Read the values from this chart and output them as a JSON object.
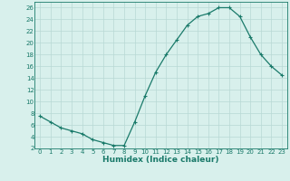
{
  "x": [
    0,
    1,
    2,
    3,
    4,
    5,
    6,
    7,
    8,
    9,
    10,
    11,
    12,
    13,
    14,
    15,
    16,
    17,
    18,
    19,
    20,
    21,
    22,
    23
  ],
  "y": [
    7.5,
    6.5,
    5.5,
    5.0,
    4.5,
    3.5,
    3.0,
    2.5,
    2.5,
    6.5,
    11.0,
    15.0,
    18.0,
    20.5,
    23.0,
    24.5,
    25.0,
    26.0,
    26.0,
    24.5,
    21.0,
    18.0,
    16.0,
    14.5
  ],
  "line_color": "#1a7a6a",
  "marker": "+",
  "markersize": 3.5,
  "linewidth": 0.9,
  "bg_color": "#d8f0ec",
  "grid_color": "#b8d8d4",
  "xlabel": "Humidex (Indice chaleur)",
  "xlim": [
    -0.5,
    23.5
  ],
  "ylim": [
    2,
    27
  ],
  "yticks": [
    2,
    4,
    6,
    8,
    10,
    12,
    14,
    16,
    18,
    20,
    22,
    24,
    26
  ],
  "xticks": [
    0,
    1,
    2,
    3,
    4,
    5,
    6,
    7,
    8,
    9,
    10,
    11,
    12,
    13,
    14,
    15,
    16,
    17,
    18,
    19,
    20,
    21,
    22,
    23
  ],
  "tick_label_fontsize": 5.0,
  "xlabel_fontsize": 6.5,
  "axis_color": "#1a7a6a",
  "tick_color": "#1a7a6a",
  "spine_color": "#1a7a6a"
}
